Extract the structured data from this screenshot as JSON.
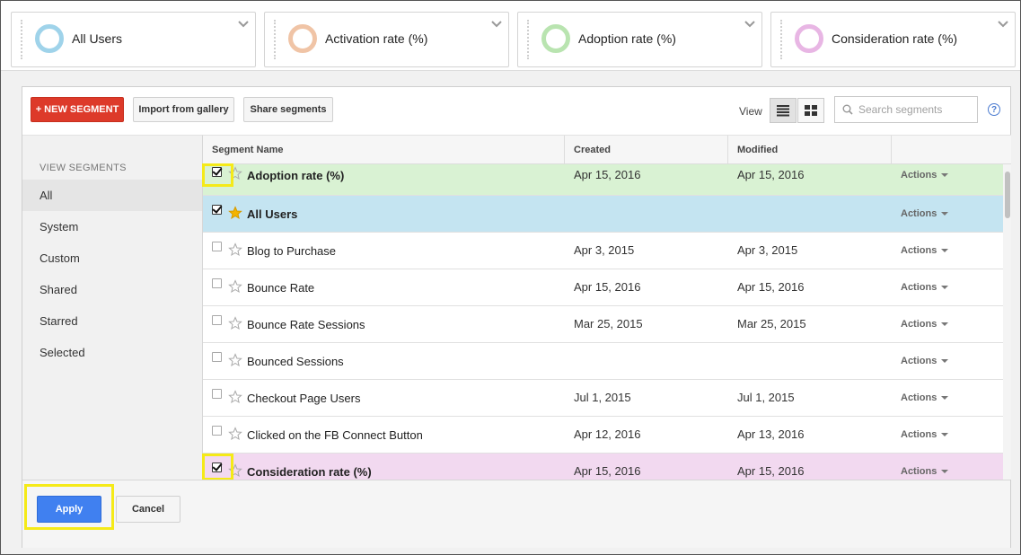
{
  "segment_cards": [
    {
      "label": "All Users",
      "color": "#9fd3ea"
    },
    {
      "label": "Activation rate (%)",
      "color": "#f0c4a6"
    },
    {
      "label": "Adoption rate (%)",
      "color": "#b9e4b0"
    },
    {
      "label": "Consideration rate (%)",
      "color": "#e8b6e4"
    }
  ],
  "toolbar": {
    "new_segment": "+ NEW SEGMENT",
    "import_gallery": "Import from gallery",
    "share_segments": "Share segments",
    "view_label": "View",
    "search_placeholder": "Search segments",
    "help": "?"
  },
  "sidebar": {
    "heading": "VIEW SEGMENTS",
    "items": [
      {
        "label": "All",
        "active": true
      },
      {
        "label": "System"
      },
      {
        "label": "Custom"
      },
      {
        "label": "Shared"
      },
      {
        "label": "Starred"
      },
      {
        "label": "Selected"
      }
    ]
  },
  "table": {
    "headers": {
      "name": "Segment Name",
      "created": "Created",
      "modified": "Modified"
    },
    "actions_label": "Actions",
    "rows": [
      {
        "name": "Adoption rate (%)",
        "created": "Apr 15, 2016",
        "modified": "Apr 15, 2016",
        "checked": true,
        "starred": false,
        "highlight": "green"
      },
      {
        "name": "All Users",
        "created": "",
        "modified": "",
        "checked": true,
        "starred": true,
        "highlight": "blue"
      },
      {
        "name": "Blog to Purchase",
        "created": "Apr 3, 2015",
        "modified": "Apr 3, 2015",
        "checked": false,
        "starred": false
      },
      {
        "name": "Bounce Rate",
        "created": "Apr 15, 2016",
        "modified": "Apr 15, 2016",
        "checked": false,
        "starred": false
      },
      {
        "name": "Bounce Rate Sessions",
        "created": "Mar 25, 2015",
        "modified": "Mar 25, 2015",
        "checked": false,
        "starred": false
      },
      {
        "name": "Bounced Sessions",
        "created": "",
        "modified": "",
        "checked": false,
        "starred": false
      },
      {
        "name": "Checkout Page Users",
        "created": "Jul 1, 2015",
        "modified": "Jul 1, 2015",
        "checked": false,
        "starred": false
      },
      {
        "name": "Clicked on the FB Connect Button",
        "created": "Apr 12, 2016",
        "modified": "Apr 13, 2016",
        "checked": false,
        "starred": false
      },
      {
        "name": "Consideration rate (%)",
        "created": "Apr 15, 2016",
        "modified": "Apr 15, 2016",
        "checked": true,
        "starred": false,
        "highlight": "pink"
      }
    ]
  },
  "footer": {
    "apply": "Apply",
    "cancel": "Cancel"
  },
  "colors": {
    "accent_red": "#dd3a2a",
    "apply_blue": "#4080f0",
    "highlight_yellow": "#f5ea18",
    "star_gold": "#f4b400"
  }
}
